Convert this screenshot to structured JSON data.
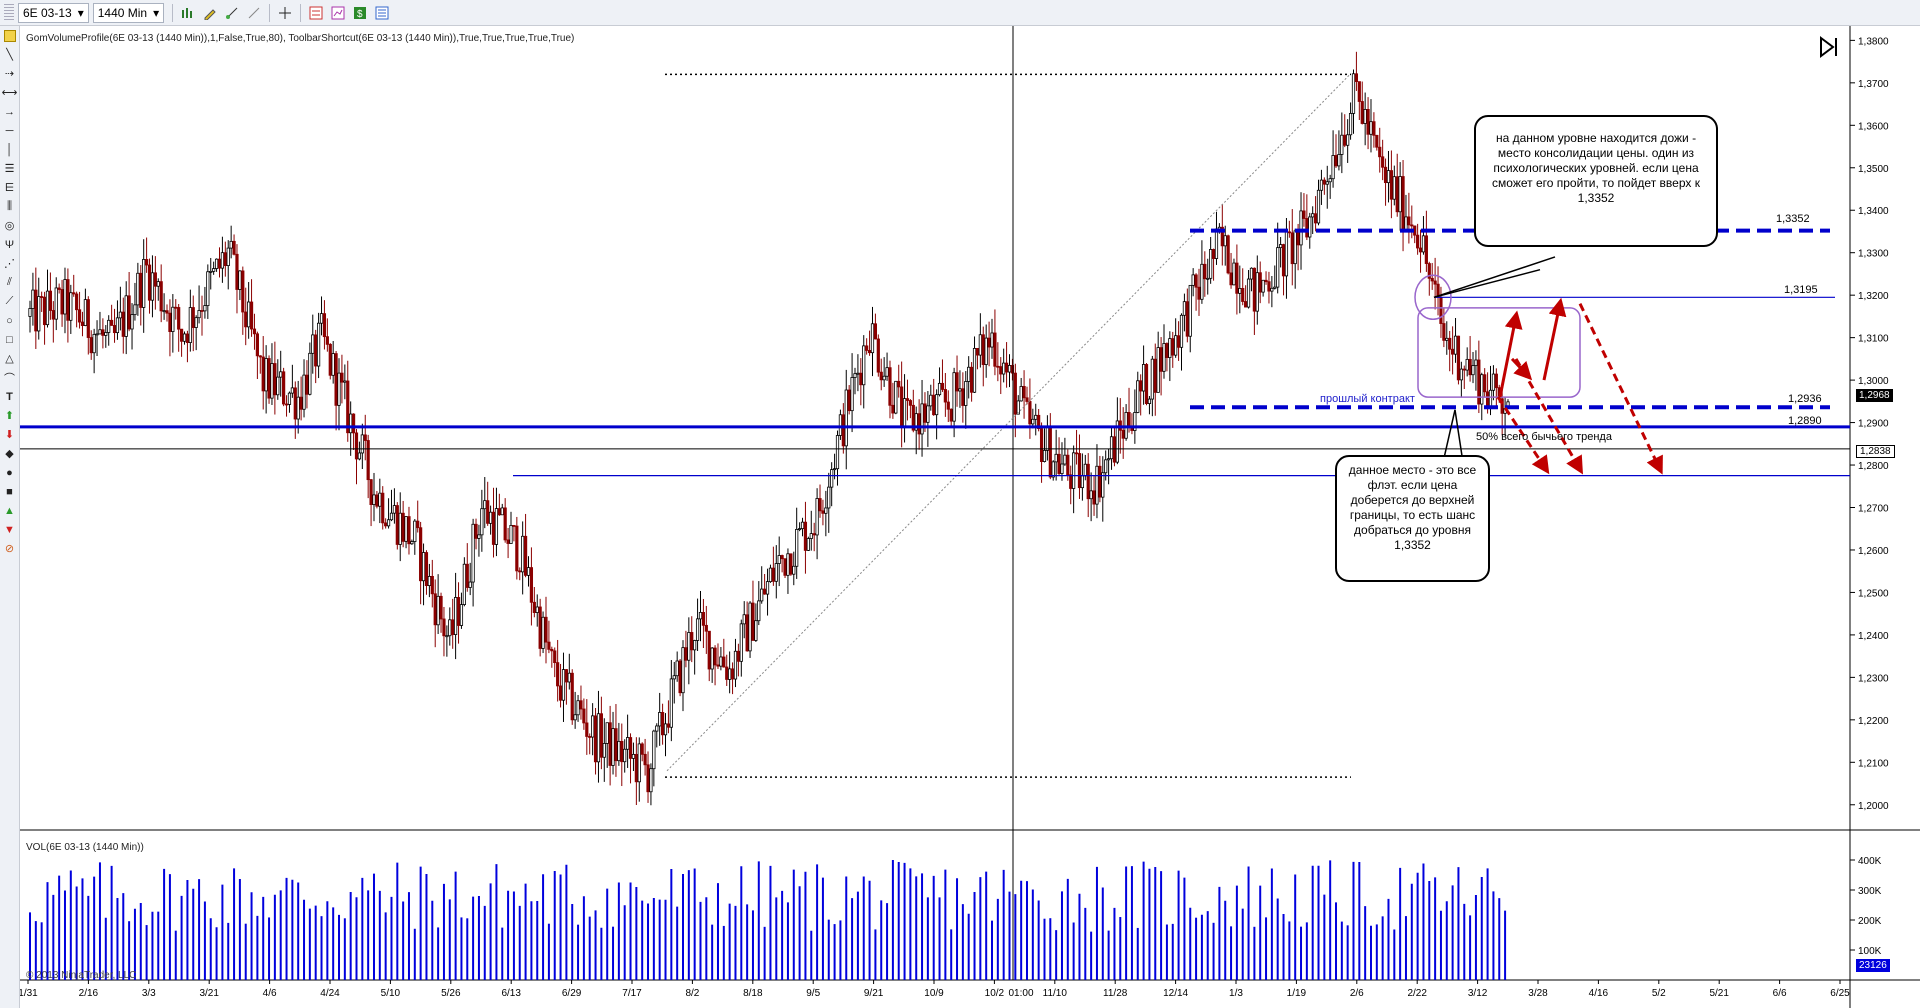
{
  "toolbar": {
    "instrument": "6E 03-13",
    "interval": "1440 Min"
  },
  "indicator_label": "GomVolumeProfile(6E 03-13 (1440 Min)),1,False,True,80), ToolbarShortcut(6E 03-13 (1440 Min)),True,True,True,True,True)",
  "volume_label": "VOL(6E 03-13 (1440 Min))",
  "copyright": "© 2013 NinjaTrader, LLC",
  "callouts": {
    "top": "на данном уровне находится дожи - место консолидации цены. один из психологических уровней. если цена сможет его пройти, то пойдет вверх к 1,3352",
    "bottom": "данное место - это все флэт. если цена доберется до верхней границы, то есть шанс добраться до уровня 1,3352"
  },
  "annotations": {
    "prev_contract": "прошлый контракт",
    "fifty_pct": "50% всего бычьего тренда"
  },
  "levels": {
    "l1": "1,3352",
    "l2": "1,3195",
    "l3": "1,2936",
    "l4": "1,2890"
  },
  "price_tags": {
    "current": "1,2968",
    "crosshair": "1,2838",
    "volume": "23126"
  },
  "colors": {
    "bull": "#000000",
    "bear": "#8b0000",
    "level_blue": "#0000cc",
    "volume_bar": "#0000dd",
    "arrow_red": "#c00000",
    "box_purple": "#9966cc"
  },
  "chart_data": {
    "type": "candlestick",
    "y_ticks": [
      "1,3800",
      "1,3700",
      "1,3600",
      "1,3500",
      "1,3400",
      "1,3300",
      "1,3200",
      "1,3100",
      "1,3000",
      "1,2900",
      "1,2800",
      "1,2700",
      "1,2600",
      "1,2500",
      "1,2400",
      "1,2300",
      "1,2200",
      "1,2100",
      "1,2000"
    ],
    "ylim": [
      1.195,
      1.3815
    ],
    "x_ticks": [
      "1/31",
      "2/16",
      "3/3",
      "3/21",
      "4/6",
      "4/24",
      "5/10",
      "5/26",
      "6/13",
      "6/29",
      "7/17",
      "8/2",
      "8/18",
      "9/5",
      "9/21",
      "10/9",
      "10/2",
      "11/10",
      "11/28",
      "12/14",
      "1/3",
      "1/19",
      "2/6",
      "2/22",
      "3/12",
      "3/28",
      "4/16",
      "5/2",
      "5/21",
      "6/6",
      "6/25"
    ],
    "crosshair_x_label": "01:00",
    "waypoints": [
      [
        0,
        1.315
      ],
      [
        12,
        1.318
      ],
      [
        28,
        1.308
      ],
      [
        40,
        1.326
      ],
      [
        52,
        1.311
      ],
      [
        68,
        1.33
      ],
      [
        80,
        1.3
      ],
      [
        92,
        1.296
      ],
      [
        100,
        1.31
      ],
      [
        118,
        1.274
      ],
      [
        132,
        1.262
      ],
      [
        144,
        1.238
      ],
      [
        155,
        1.27
      ],
      [
        168,
        1.26
      ],
      [
        180,
        1.23
      ],
      [
        194,
        1.216
      ],
      [
        212,
        1.208
      ],
      [
        228,
        1.242
      ],
      [
        240,
        1.232
      ],
      [
        256,
        1.256
      ],
      [
        270,
        1.268
      ],
      [
        288,
        1.312
      ],
      [
        300,
        1.29
      ],
      [
        316,
        1.295
      ],
      [
        330,
        1.31
      ],
      [
        342,
        1.29
      ],
      [
        356,
        1.278
      ],
      [
        366,
        1.276
      ],
      [
        380,
        1.296
      ],
      [
        394,
        1.312
      ],
      [
        408,
        1.332
      ],
      [
        420,
        1.32
      ],
      [
        438,
        1.336
      ],
      [
        448,
        1.355
      ],
      [
        455,
        1.368
      ],
      [
        464,
        1.348
      ],
      [
        476,
        1.336
      ],
      [
        485,
        1.31
      ],
      [
        495,
        1.302
      ],
      [
        502,
        1.296
      ],
      [
        507,
        1.297
      ]
    ],
    "total_bars": 508,
    "volume": {
      "y_ticks": [
        "400K",
        "300K",
        "200K",
        "100K"
      ],
      "ylim": [
        0,
        480000
      ]
    }
  }
}
